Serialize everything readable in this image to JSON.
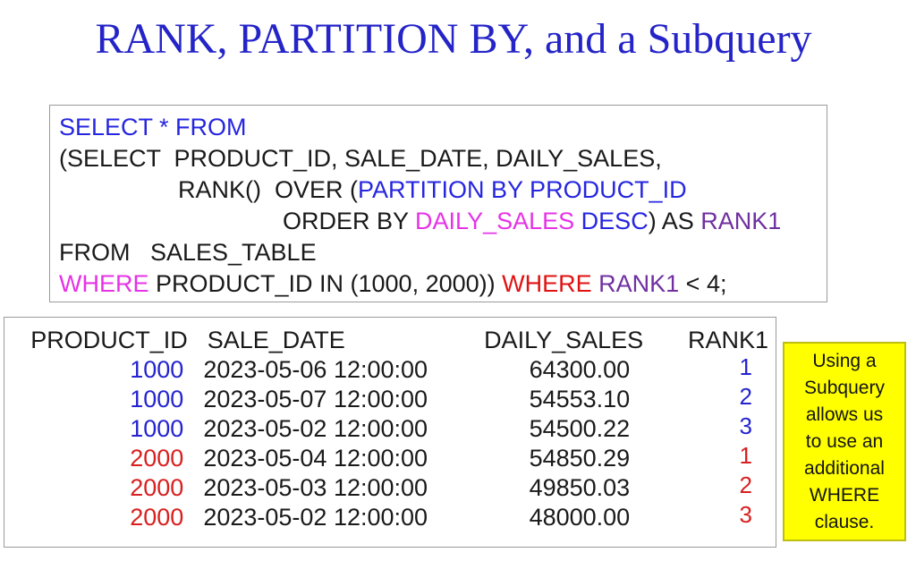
{
  "title": "RANK, PARTITION BY, and a Subquery",
  "colors": {
    "title_blue": "#2424c8",
    "blue": "#2626e0",
    "magenta": "#e633e6",
    "purple": "#7030a0",
    "red": "#e01212",
    "black": "#1a1a1a",
    "row_blue": "#2424d0",
    "row_red": "#d82020",
    "note_bg": "#ffff00",
    "note_border": "#bdbd12"
  },
  "code": {
    "lines": [
      {
        "indent": 0,
        "segments": [
          {
            "text": "SELECT * FROM",
            "color": "blue"
          }
        ]
      },
      {
        "indent": 0,
        "segments": [
          {
            "text": "(SELECT  PRODUCT_ID, SALE_DATE, DAILY_SALES,",
            "color": "black"
          }
        ]
      },
      {
        "indent": 1,
        "segments": [
          {
            "text": "RANK()  OVER (",
            "color": "black"
          },
          {
            "text": "PARTITION BY PRODUCT_ID",
            "color": "blue"
          }
        ]
      },
      {
        "indent": 2,
        "segments": [
          {
            "text": "ORDER BY ",
            "color": "black"
          },
          {
            "text": "DAILY_SALES",
            "color": "magenta"
          },
          {
            "text": " ",
            "color": "black"
          },
          {
            "text": "DESC",
            "color": "blue"
          },
          {
            "text": ") AS ",
            "color": "black"
          },
          {
            "text": "RANK1",
            "color": "purple"
          }
        ]
      },
      {
        "indent": 0,
        "segments": [
          {
            "text": "FROM   SALES_TABLE",
            "color": "black"
          }
        ]
      },
      {
        "indent": 0,
        "segments": [
          {
            "text": "WHERE",
            "color": "magenta"
          },
          {
            "text": " PRODUCT_ID IN (1000, 2000)) ",
            "color": "black"
          },
          {
            "text": "WHERE",
            "color": "red"
          },
          {
            "text": " ",
            "color": "black"
          },
          {
            "text": "RANK1",
            "color": "purple"
          },
          {
            "text": " < 4;",
            "color": "black"
          }
        ]
      }
    ]
  },
  "table": {
    "headers": [
      "PRODUCT_ID",
      "SALE_DATE",
      "DAILY_SALES",
      "RANK1"
    ],
    "rows": [
      {
        "product_id": "1000",
        "sale_date": "2023-05-06 12:00:00",
        "daily_sales": "64300.00",
        "rank": "1",
        "color": "blue"
      },
      {
        "product_id": "1000",
        "sale_date": "2023-05-07 12:00:00",
        "daily_sales": "54553.10",
        "rank": "2",
        "color": "blue"
      },
      {
        "product_id": "1000",
        "sale_date": "2023-05-02 12:00:00",
        "daily_sales": "54500.22",
        "rank": "3",
        "color": "blue"
      },
      {
        "product_id": "2000",
        "sale_date": "2023-05-04 12:00:00",
        "daily_sales": "54850.29",
        "rank": "1",
        "color": "red"
      },
      {
        "product_id": "2000",
        "sale_date": "2023-05-03 12:00:00",
        "daily_sales": "49850.03",
        "rank": "2",
        "color": "red"
      },
      {
        "product_id": "2000",
        "sale_date": "2023-05-02 12:00:00",
        "daily_sales": "48000.00",
        "rank": "3",
        "color": "red"
      }
    ]
  },
  "note": {
    "lines": [
      "Using a",
      "Subquery",
      "allows us",
      "to use an",
      "additional",
      "WHERE",
      "clause."
    ]
  }
}
